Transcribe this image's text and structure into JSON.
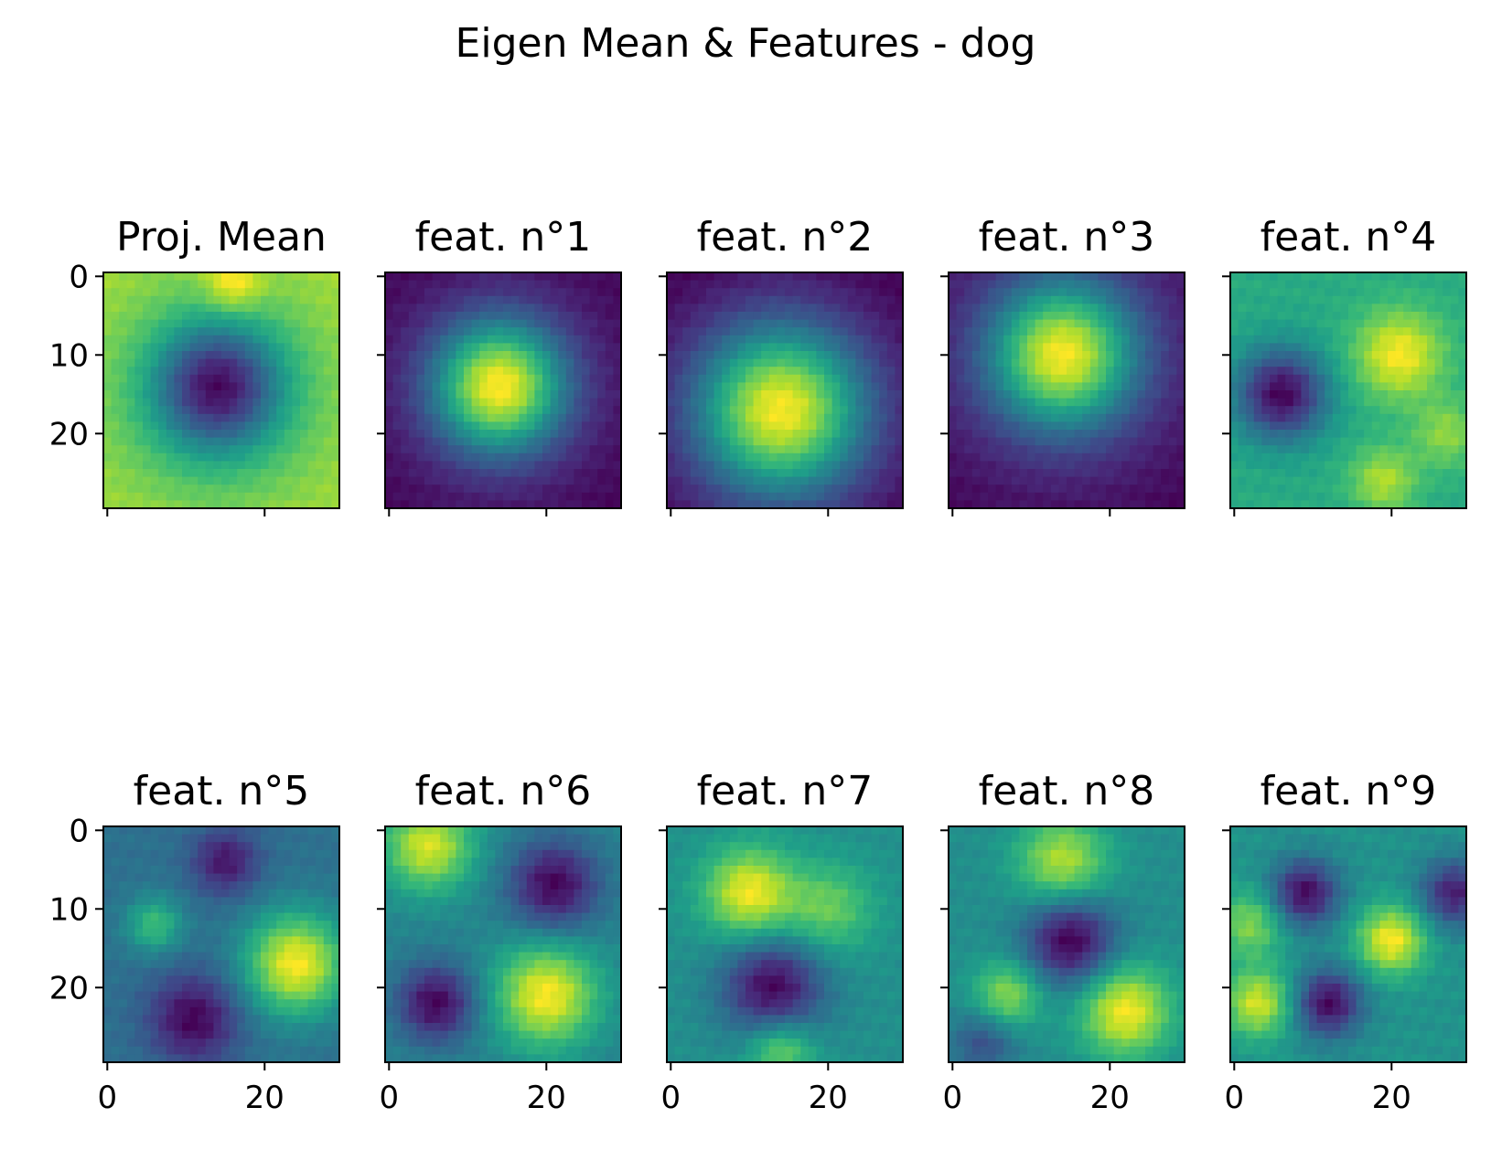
{
  "figure": {
    "title": "Eigen Mean & Features - dog"
  },
  "chart_data": {
    "type": "heatmap",
    "title": "Eigen Mean & Features - dog",
    "colormap": "viridis",
    "grid": false,
    "image_size": [
      30,
      30
    ],
    "layout": {
      "rows": 2,
      "cols": 5
    },
    "x_ticks": [
      0,
      20
    ],
    "y_ticks": [
      0,
      10,
      20
    ],
    "x_tick_labels_shown_on": "bottom row only",
    "y_tick_labels_shown_on": "first column only",
    "panels": [
      {
        "title": "Proj. Mean",
        "description": "bright ring with dark center",
        "base": 0.72,
        "blobs": [
          [
            14,
            14,
            -0.7,
            5.5
          ],
          [
            1,
            16,
            0.25,
            2.5
          ],
          [
            15,
            14,
            -0.25,
            10
          ]
        ]
      },
      {
        "title": "feat. n°1",
        "description": "bright central blob",
        "base": 0.12,
        "blobs": [
          [
            14,
            14,
            0.85,
            5.5
          ],
          [
            14,
            14,
            0.25,
            9
          ]
        ]
      },
      {
        "title": "feat. n°2",
        "description": "large bright central region",
        "base": 0.1,
        "blobs": [
          [
            17,
            14,
            0.8,
            7
          ],
          [
            17,
            14,
            0.3,
            12
          ]
        ]
      },
      {
        "title": "feat. n°3",
        "description": "bright upper block, dark border",
        "base": 0.1,
        "blobs": [
          [
            10,
            14,
            0.8,
            6
          ],
          [
            10,
            14,
            0.3,
            11
          ]
        ]
      },
      {
        "title": "feat. n°4",
        "description": "dark left, bright right",
        "base": 0.55,
        "blobs": [
          [
            15,
            6,
            -0.55,
            4
          ],
          [
            10,
            21,
            0.35,
            4
          ],
          [
            26,
            19,
            0.25,
            3
          ],
          [
            20,
            27,
            0.2,
            3
          ]
        ]
      },
      {
        "title": "feat. n°5",
        "description": "bright right blob, dark spots top and bottom",
        "base": 0.4,
        "blobs": [
          [
            17,
            24,
            0.6,
            4.5
          ],
          [
            12,
            6,
            0.3,
            2.5
          ],
          [
            4,
            15,
            -0.3,
            3
          ],
          [
            24,
            11,
            -0.35,
            4
          ]
        ]
      },
      {
        "title": "feat. n°6",
        "description": "bright top-left and bottom-right, dark opposite",
        "base": 0.45,
        "blobs": [
          [
            2,
            5,
            0.45,
            4
          ],
          [
            21,
            20,
            0.5,
            4.5
          ],
          [
            7,
            21,
            -0.4,
            4
          ],
          [
            22,
            6,
            -0.4,
            3.5
          ]
        ]
      },
      {
        "title": "feat. n°7",
        "description": "bright top band, dark lower center",
        "base": 0.45,
        "blobs": [
          [
            8,
            10,
            0.45,
            4
          ],
          [
            10,
            20,
            0.25,
            4
          ],
          [
            20,
            13,
            -0.45,
            4.5
          ],
          [
            28,
            14,
            0.3,
            3
          ]
        ]
      },
      {
        "title": "feat. n°8",
        "description": "dark center with bright surrounding spots",
        "base": 0.45,
        "blobs": [
          [
            14,
            15,
            -0.5,
            4
          ],
          [
            4,
            14,
            0.4,
            4
          ],
          [
            21,
            7,
            0.35,
            3
          ],
          [
            23,
            22,
            0.5,
            4
          ],
          [
            27,
            4,
            -0.25,
            3
          ]
        ]
      },
      {
        "title": "feat. n°9",
        "description": "checkered blobs",
        "base": 0.5,
        "blobs": [
          [
            8,
            9,
            -0.4,
            3
          ],
          [
            22,
            12,
            -0.4,
            3
          ],
          [
            14,
            20,
            0.4,
            3
          ],
          [
            8,
            28,
            -0.35,
            3
          ],
          [
            22,
            3,
            0.35,
            3
          ],
          [
            12,
            2,
            0.25,
            3
          ]
        ]
      }
    ]
  }
}
